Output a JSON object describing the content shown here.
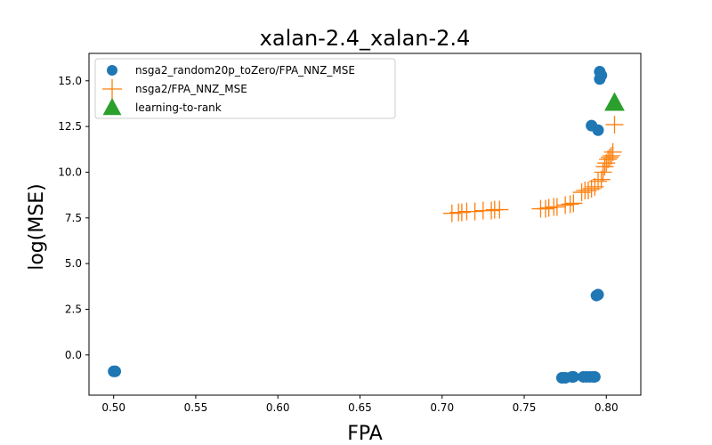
{
  "chart_data": {
    "type": "scatter",
    "title": "xalan-2.4_xalan-2.4",
    "xlabel": "FPA",
    "ylabel": "log(MSE)",
    "xlim": [
      0.485,
      0.821
    ],
    "ylim": [
      -2.2,
      16.5
    ],
    "xticks": [
      0.5,
      0.55,
      0.6,
      0.65,
      0.7,
      0.75,
      0.8
    ],
    "xtick_labels": [
      "0.50",
      "0.55",
      "0.60",
      "0.65",
      "0.70",
      "0.75",
      "0.80"
    ],
    "yticks": [
      0.0,
      2.5,
      5.0,
      7.5,
      10.0,
      12.5,
      15.0
    ],
    "ytick_labels": [
      "0.0",
      "2.5",
      "5.0",
      "7.5",
      "10.0",
      "12.5",
      "15.0"
    ],
    "grid": false,
    "legend_position": "top-left",
    "series": [
      {
        "name": "nsga2_random20p_toZero/FPA_NNZ_MSE",
        "marker": "circle",
        "color": "#1f77b4",
        "points": [
          [
            0.5,
            -0.9
          ],
          [
            0.501,
            -0.9
          ],
          [
            0.773,
            -1.25
          ],
          [
            0.775,
            -1.25
          ],
          [
            0.779,
            -1.2
          ],
          [
            0.78,
            -1.2
          ],
          [
            0.786,
            -1.2
          ],
          [
            0.788,
            -1.2
          ],
          [
            0.79,
            -1.2
          ],
          [
            0.792,
            -1.2
          ],
          [
            0.793,
            -1.2
          ],
          [
            0.794,
            3.25
          ],
          [
            0.795,
            3.3
          ],
          [
            0.791,
            12.55
          ],
          [
            0.795,
            12.3
          ],
          [
            0.796,
            15.1
          ],
          [
            0.797,
            15.3
          ],
          [
            0.796,
            15.5
          ]
        ]
      },
      {
        "name": "nsga2/FPA_NNZ_MSE",
        "marker": "plus",
        "color": "#ff7f0e",
        "points": [
          [
            0.706,
            7.75
          ],
          [
            0.71,
            7.8
          ],
          [
            0.712,
            7.8
          ],
          [
            0.715,
            7.85
          ],
          [
            0.72,
            7.85
          ],
          [
            0.725,
            7.9
          ],
          [
            0.73,
            7.9
          ],
          [
            0.732,
            7.95
          ],
          [
            0.735,
            7.95
          ],
          [
            0.76,
            8.0
          ],
          [
            0.763,
            8.0
          ],
          [
            0.765,
            8.05
          ],
          [
            0.768,
            8.1
          ],
          [
            0.77,
            8.1
          ],
          [
            0.775,
            8.2
          ],
          [
            0.778,
            8.25
          ],
          [
            0.78,
            8.3
          ],
          [
            0.785,
            8.9
          ],
          [
            0.787,
            9.0
          ],
          [
            0.789,
            9.0
          ],
          [
            0.791,
            9.1
          ],
          [
            0.793,
            9.2
          ],
          [
            0.795,
            9.5
          ],
          [
            0.797,
            9.6
          ],
          [
            0.798,
            10.0
          ],
          [
            0.799,
            10.3
          ],
          [
            0.8,
            10.5
          ],
          [
            0.801,
            10.7
          ],
          [
            0.802,
            10.8
          ],
          [
            0.803,
            10.9
          ],
          [
            0.804,
            11.1
          ],
          [
            0.805,
            12.6
          ]
        ]
      },
      {
        "name": "learning-to-rank",
        "marker": "triangle",
        "color": "#2ca02c",
        "points": [
          [
            0.805,
            13.8
          ]
        ]
      }
    ]
  }
}
